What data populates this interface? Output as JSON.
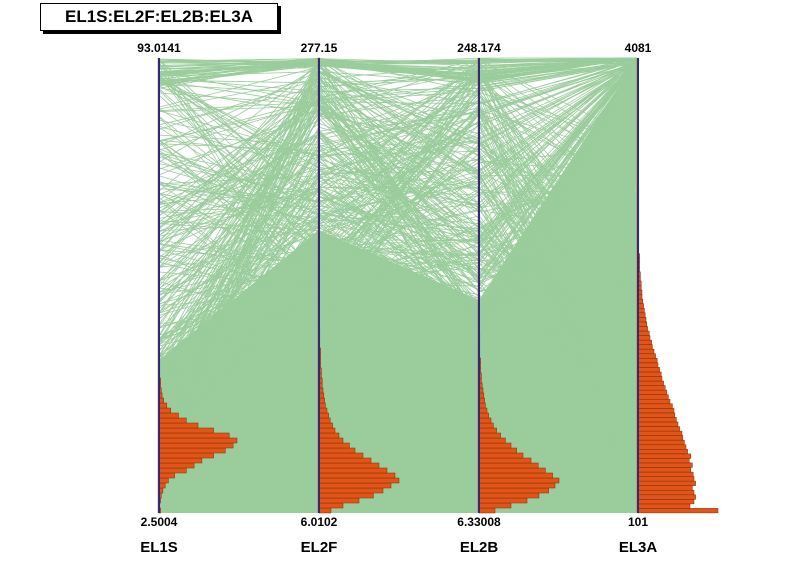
{
  "chart_data": {
    "type": "parallel-coordinates",
    "title": "EL1S:EL2F:EL2B:EL3A",
    "axes": [
      {
        "name": "EL1S",
        "max_label": "93.0141",
        "min_label": "2.5004",
        "min": 2.5004,
        "max": 93.0141,
        "histogram": [
          0.02,
          0.01,
          0.02,
          0.03,
          0.05,
          0.08,
          0.12,
          0.2,
          0.35,
          0.45,
          0.55,
          0.7,
          0.85,
          0.95,
          1.0,
          0.9,
          0.7,
          0.5,
          0.35,
          0.25,
          0.15,
          0.1,
          0.06,
          0.04,
          0.03,
          0.02,
          0.02,
          0.01,
          0.01,
          0.01,
          0.01,
          0.01,
          0.01
        ]
      },
      {
        "name": "EL2F",
        "max_label": "277.15",
        "min_label": "6.0102",
        "min": 6.0102,
        "max": 277.15,
        "histogram": [
          0.15,
          0.3,
          0.5,
          0.68,
          0.8,
          0.9,
          1.0,
          0.95,
          0.85,
          0.75,
          0.65,
          0.55,
          0.45,
          0.38,
          0.3,
          0.25,
          0.2,
          0.17,
          0.14,
          0.12,
          0.1,
          0.08,
          0.07,
          0.06,
          0.05,
          0.04,
          0.04,
          0.03,
          0.03,
          0.02,
          0.02,
          0.02,
          0.02,
          0.01,
          0.01,
          0.01,
          0.01
        ]
      },
      {
        "name": "EL2B",
        "max_label": "248.174",
        "min_label": "6.33008",
        "min": 6.33008,
        "max": 248.174,
        "histogram": [
          0.2,
          0.4,
          0.6,
          0.75,
          0.87,
          0.95,
          1.0,
          0.92,
          0.83,
          0.74,
          0.65,
          0.55,
          0.47,
          0.4,
          0.33,
          0.27,
          0.22,
          0.18,
          0.15,
          0.12,
          0.1,
          0.08,
          0.07,
          0.06,
          0.05,
          0.04,
          0.03,
          0.03,
          0.02,
          0.02,
          0.02,
          0.01,
          0.01,
          0.01,
          0.01,
          0.01
        ]
      },
      {
        "name": "EL3A",
        "max_label": "4081",
        "min_label": "101",
        "min": 101,
        "max": 4081,
        "histogram": [
          1.0,
          0.65,
          0.7,
          0.72,
          0.7,
          0.68,
          0.72,
          0.7,
          0.69,
          0.66,
          0.68,
          0.64,
          0.66,
          0.62,
          0.6,
          0.58,
          0.56,
          0.55,
          0.52,
          0.5,
          0.48,
          0.46,
          0.45,
          0.43,
          0.4,
          0.38,
          0.36,
          0.34,
          0.32,
          0.3,
          0.29,
          0.27,
          0.25,
          0.24,
          0.22,
          0.2,
          0.18,
          0.17,
          0.15,
          0.14,
          0.12,
          0.11,
          0.1,
          0.09,
          0.08,
          0.07,
          0.06,
          0.05,
          0.05,
          0.04,
          0.04,
          0.03,
          0.03,
          0.02,
          0.02,
          0.02,
          0.02,
          0.01,
          0.01,
          0.01,
          0.01,
          0.01,
          0.01,
          0.01,
          0.01,
          0.01,
          0.01,
          0.01,
          0.01,
          0.01,
          0.01,
          0.01
        ]
      }
    ],
    "colors": {
      "lines": "#9acc9c",
      "hist_fill": "#e0561a",
      "axis": "#1c2d8c",
      "axis_accent": "#ff0000"
    }
  }
}
